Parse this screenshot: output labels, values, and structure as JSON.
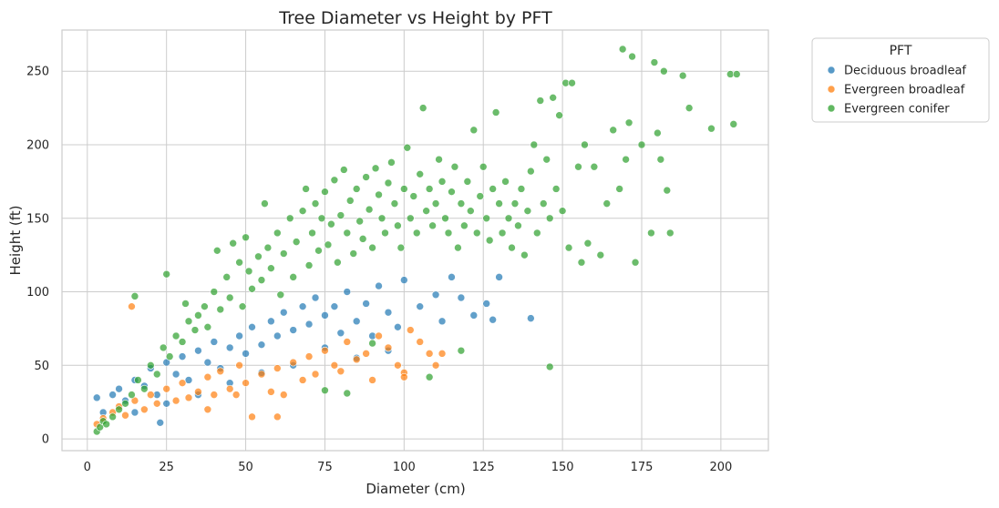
{
  "chart_data": {
    "type": "scatter",
    "title": "Tree Diameter vs Height by PFT",
    "xlabel": "Diameter (cm)",
    "ylabel": "Height (ft)",
    "xlim": [
      -8,
      215
    ],
    "ylim": [
      -8,
      278
    ],
    "xticks": [
      0,
      25,
      50,
      75,
      100,
      125,
      150,
      175,
      200
    ],
    "yticks": [
      0,
      50,
      100,
      150,
      200,
      250
    ],
    "grid": true,
    "legend": {
      "title": "PFT",
      "placement": "outside top-right",
      "entries": [
        "Deciduous broadleaf",
        "Evergreen broadleaf",
        "Evergreen conifer"
      ]
    },
    "series": [
      {
        "name": "Deciduous broadleaf",
        "color": "#1f77b4",
        "points": [
          [
            3,
            28
          ],
          [
            5,
            18
          ],
          [
            8,
            30
          ],
          [
            10,
            34
          ],
          [
            12,
            26
          ],
          [
            15,
            40
          ],
          [
            18,
            36
          ],
          [
            20,
            48
          ],
          [
            22,
            30
          ],
          [
            25,
            52
          ],
          [
            28,
            44
          ],
          [
            30,
            56
          ],
          [
            32,
            40
          ],
          [
            35,
            60
          ],
          [
            38,
            52
          ],
          [
            40,
            66
          ],
          [
            42,
            48
          ],
          [
            45,
            62
          ],
          [
            48,
            70
          ],
          [
            50,
            58
          ],
          [
            52,
            76
          ],
          [
            55,
            64
          ],
          [
            58,
            80
          ],
          [
            60,
            70
          ],
          [
            62,
            86
          ],
          [
            65,
            74
          ],
          [
            68,
            90
          ],
          [
            70,
            78
          ],
          [
            72,
            96
          ],
          [
            75,
            84
          ],
          [
            78,
            90
          ],
          [
            80,
            72
          ],
          [
            82,
            100
          ],
          [
            85,
            80
          ],
          [
            88,
            92
          ],
          [
            90,
            70
          ],
          [
            92,
            104
          ],
          [
            95,
            86
          ],
          [
            98,
            76
          ],
          [
            100,
            108
          ],
          [
            105,
            90
          ],
          [
            110,
            98
          ],
          [
            112,
            80
          ],
          [
            118,
            96
          ],
          [
            122,
            84
          ],
          [
            126,
            92
          ],
          [
            130,
            110
          ],
          [
            140,
            82
          ],
          [
            128,
            81
          ],
          [
            115,
            110
          ],
          [
            95,
            60
          ],
          [
            85,
            55
          ],
          [
            75,
            62
          ],
          [
            65,
            50
          ],
          [
            55,
            45
          ],
          [
            45,
            38
          ],
          [
            35,
            30
          ],
          [
            25,
            24
          ],
          [
            15,
            18
          ],
          [
            23,
            11
          ]
        ]
      },
      {
        "name": "Evergreen broadleaf",
        "color": "#ff7f0e",
        "points": [
          [
            3,
            10
          ],
          [
            5,
            14
          ],
          [
            8,
            18
          ],
          [
            10,
            22
          ],
          [
            12,
            16
          ],
          [
            14,
            90
          ],
          [
            15,
            26
          ],
          [
            18,
            20
          ],
          [
            20,
            30
          ],
          [
            22,
            24
          ],
          [
            25,
            34
          ],
          [
            28,
            26
          ],
          [
            30,
            38
          ],
          [
            32,
            28
          ],
          [
            35,
            32
          ],
          [
            38,
            42
          ],
          [
            40,
            30
          ],
          [
            42,
            46
          ],
          [
            45,
            34
          ],
          [
            48,
            50
          ],
          [
            50,
            38
          ],
          [
            52,
            15
          ],
          [
            55,
            44
          ],
          [
            58,
            32
          ],
          [
            60,
            48
          ],
          [
            62,
            30
          ],
          [
            65,
            52
          ],
          [
            68,
            40
          ],
          [
            70,
            56
          ],
          [
            72,
            44
          ],
          [
            75,
            60
          ],
          [
            78,
            50
          ],
          [
            80,
            46
          ],
          [
            82,
            66
          ],
          [
            85,
            54
          ],
          [
            88,
            58
          ],
          [
            90,
            40
          ],
          [
            92,
            70
          ],
          [
            95,
            62
          ],
          [
            98,
            50
          ],
          [
            100,
            45
          ],
          [
            102,
            74
          ],
          [
            105,
            66
          ],
          [
            108,
            58
          ],
          [
            110,
            50
          ],
          [
            112,
            58
          ],
          [
            100,
            42
          ],
          [
            60,
            15
          ],
          [
            47,
            30
          ],
          [
            38,
            20
          ]
        ]
      },
      {
        "name": "Evergreen conifer",
        "color": "#2ca02c",
        "points": [
          [
            3,
            5
          ],
          [
            4,
            8
          ],
          [
            5,
            12
          ],
          [
            6,
            10
          ],
          [
            8,
            15
          ],
          [
            10,
            20
          ],
          [
            12,
            24
          ],
          [
            14,
            30
          ],
          [
            15,
            97
          ],
          [
            16,
            40
          ],
          [
            18,
            34
          ],
          [
            20,
            50
          ],
          [
            22,
            44
          ],
          [
            24,
            62
          ],
          [
            25,
            112
          ],
          [
            26,
            56
          ],
          [
            28,
            70
          ],
          [
            30,
            66
          ],
          [
            31,
            92
          ],
          [
            32,
            80
          ],
          [
            34,
            74
          ],
          [
            35,
            84
          ],
          [
            37,
            90
          ],
          [
            38,
            76
          ],
          [
            40,
            100
          ],
          [
            41,
            128
          ],
          [
            42,
            88
          ],
          [
            44,
            110
          ],
          [
            45,
            96
          ],
          [
            46,
            133
          ],
          [
            48,
            120
          ],
          [
            49,
            90
          ],
          [
            50,
            137
          ],
          [
            51,
            114
          ],
          [
            52,
            102
          ],
          [
            54,
            124
          ],
          [
            55,
            108
          ],
          [
            56,
            160
          ],
          [
            57,
            130
          ],
          [
            58,
            116
          ],
          [
            60,
            140
          ],
          [
            61,
            98
          ],
          [
            62,
            126
          ],
          [
            64,
            150
          ],
          [
            65,
            110
          ],
          [
            66,
            134
          ],
          [
            68,
            155
          ],
          [
            69,
            170
          ],
          [
            70,
            118
          ],
          [
            71,
            140
          ],
          [
            72,
            160
          ],
          [
            73,
            128
          ],
          [
            74,
            150
          ],
          [
            75,
            168
          ],
          [
            76,
            132
          ],
          [
            77,
            146
          ],
          [
            78,
            176
          ],
          [
            79,
            120
          ],
          [
            80,
            152
          ],
          [
            81,
            183
          ],
          [
            82,
            140
          ],
          [
            83,
            162
          ],
          [
            84,
            126
          ],
          [
            85,
            170
          ],
          [
            86,
            148
          ],
          [
            87,
            136
          ],
          [
            88,
            178
          ],
          [
            89,
            156
          ],
          [
            90,
            130
          ],
          [
            91,
            184
          ],
          [
            92,
            166
          ],
          [
            93,
            150
          ],
          [
            94,
            140
          ],
          [
            95,
            174
          ],
          [
            96,
            188
          ],
          [
            97,
            160
          ],
          [
            98,
            145
          ],
          [
            99,
            130
          ],
          [
            100,
            170
          ],
          [
            101,
            198
          ],
          [
            102,
            150
          ],
          [
            103,
            165
          ],
          [
            104,
            140
          ],
          [
            105,
            180
          ],
          [
            106,
            225
          ],
          [
            107,
            155
          ],
          [
            108,
            170
          ],
          [
            109,
            145
          ],
          [
            110,
            160
          ],
          [
            111,
            190
          ],
          [
            112,
            175
          ],
          [
            113,
            150
          ],
          [
            114,
            140
          ],
          [
            115,
            168
          ],
          [
            116,
            185
          ],
          [
            117,
            130
          ],
          [
            118,
            160
          ],
          [
            119,
            145
          ],
          [
            120,
            175
          ],
          [
            121,
            155
          ],
          [
            122,
            210
          ],
          [
            123,
            140
          ],
          [
            124,
            165
          ],
          [
            125,
            185
          ],
          [
            126,
            150
          ],
          [
            127,
            135
          ],
          [
            128,
            170
          ],
          [
            129,
            222
          ],
          [
            130,
            160
          ],
          [
            131,
            140
          ],
          [
            132,
            175
          ],
          [
            133,
            150
          ],
          [
            134,
            130
          ],
          [
            135,
            160
          ],
          [
            136,
            145
          ],
          [
            137,
            170
          ],
          [
            138,
            125
          ],
          [
            139,
            155
          ],
          [
            140,
            182
          ],
          [
            141,
            200
          ],
          [
            142,
            140
          ],
          [
            143,
            230
          ],
          [
            144,
            160
          ],
          [
            145,
            190
          ],
          [
            146,
            150
          ],
          [
            147,
            232
          ],
          [
            148,
            170
          ],
          [
            149,
            220
          ],
          [
            150,
            155
          ],
          [
            151,
            242
          ],
          [
            152,
            130
          ],
          [
            153,
            242
          ],
          [
            155,
            185
          ],
          [
            156,
            120
          ],
          [
            157,
            200
          ],
          [
            158,
            133
          ],
          [
            160,
            185
          ],
          [
            162,
            125
          ],
          [
            164,
            160
          ],
          [
            166,
            210
          ],
          [
            168,
            170
          ],
          [
            169,
            265
          ],
          [
            170,
            190
          ],
          [
            171,
            215
          ],
          [
            172,
            260
          ],
          [
            173,
            120
          ],
          [
            175,
            200
          ],
          [
            178,
            140
          ],
          [
            179,
            256
          ],
          [
            180,
            208
          ],
          [
            181,
            190
          ],
          [
            182,
            250
          ],
          [
            183,
            169
          ],
          [
            184,
            140
          ],
          [
            188,
            247
          ],
          [
            190,
            225
          ],
          [
            197,
            211
          ],
          [
            203,
            248
          ],
          [
            204,
            214
          ],
          [
            205,
            248
          ],
          [
            146,
            49
          ],
          [
            82,
            31
          ],
          [
            75,
            33
          ],
          [
            108,
            42
          ],
          [
            118,
            60
          ],
          [
            90,
            65
          ]
        ]
      }
    ]
  }
}
